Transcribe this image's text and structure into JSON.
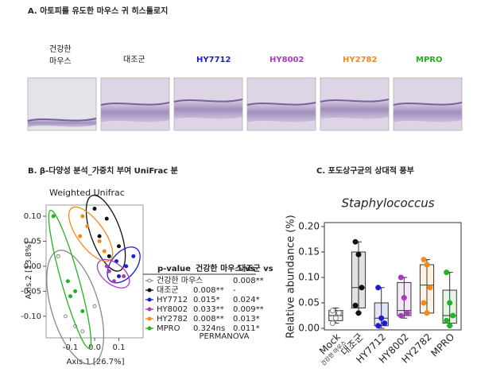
{
  "panel_a": {
    "title": "A. 아토피를 유도한 마우스 귀 히스톨로지",
    "groups": [
      "건강한\n마우스",
      "대조군",
      "HY7712",
      "HY8002",
      "HY2782",
      "MPRO"
    ],
    "group_colors": [
      "#111111",
      "#111111",
      "#1c1cd8",
      "#a83ac0",
      "#f0891c",
      "#22b322"
    ]
  },
  "panel_b_title": "B. β-다양성 분석_가중치 부여 UniFrac 분",
  "panel_c_title": "C. 포도상구균의 상대적 풍부",
  "chart_data": [
    {
      "type": "scatter",
      "title": "Weighted Unifrac",
      "x_label": "Axis.1 [26.7%]",
      "y_label": "Axis.2 [13.8%]",
      "xlim": [
        -0.2,
        0.2
      ],
      "ylim": [
        -0.14,
        0.12
      ],
      "xticks": [
        {
          "value": -0.1,
          "label": "-0.1"
        },
        {
          "value": 0,
          "label": "0.0"
        },
        0.1
      ],
      "yticks": [
        {
          "value": -0.1,
          "label": "-0.10"
        },
        {
          "value": -0.05,
          "label": "-0.05"
        },
        {
          "value": 0,
          "label": "0.00"
        },
        {
          "value": 0.05,
          "label": "0.05"
        },
        {
          "value": 0.1,
          "label": "0.10"
        }
      ],
      "series": [
        {
          "name": "건강한 마우스",
          "color": "#888888",
          "filled": false,
          "x": [
            -0.15,
            -0.12,
            -0.08,
            -0.05,
            0.0
          ],
          "values": [
            0.02,
            -0.1,
            -0.12,
            -0.13,
            -0.08
          ]
        },
        {
          "name": "대조군",
          "color": "#111111",
          "filled": true,
          "x": [
            0.0,
            0.05,
            0.02,
            0.06,
            0.1
          ],
          "values": [
            0.115,
            0.095,
            0.06,
            0.02,
            0.04
          ]
        },
        {
          "name": "HY7712",
          "color": "#1c1cd8",
          "filled": true,
          "x": [
            0.09,
            0.13,
            0.1,
            0.16
          ],
          "values": [
            0.01,
            0.0,
            -0.02,
            0.02
          ]
        },
        {
          "name": "HY8002",
          "color": "#a83ac0",
          "filled": true,
          "x": [
            0.06,
            0.08,
            0.12,
            0.05
          ],
          "values": [
            -0.01,
            -0.03,
            -0.02,
            0.0
          ]
        },
        {
          "name": "HY2782",
          "color": "#f0891c",
          "filled": true,
          "x": [
            -0.05,
            -0.03,
            0.02,
            -0.06,
            0.04
          ],
          "values": [
            0.1,
            0.08,
            0.05,
            0.06,
            0.03
          ]
        },
        {
          "name": "MPRO",
          "color": "#22b322",
          "filled": true,
          "x": [
            -0.17,
            -0.1,
            -0.08,
            -0.05,
            -0.11
          ],
          "values": [
            0.1,
            -0.06,
            -0.05,
            -0.09,
            -0.03
          ]
        }
      ]
    },
    {
      "type": "box",
      "title": "Staphylococcus",
      "y_label": "Relative abundance (%)",
      "categories": [
        "Mock",
        "대조군",
        "HY7712",
        "HY8002",
        "HY2782",
        "MPRO"
      ],
      "first_category_note": "건강한 마우스",
      "ylim": [
        0,
        0.2
      ],
      "yticks": [
        {
          "value": 0,
          "label": "0.00"
        },
        {
          "value": 0.05,
          "label": "0.05"
        },
        {
          "value": 0.1,
          "label": "0.10"
        },
        {
          "value": 0.15,
          "label": "0.15"
        },
        {
          "value": 0.2,
          "label": "0.20"
        }
      ],
      "series": [
        {
          "color": "#888888",
          "min": 0.01,
          "q1": 0.015,
          "median": 0.025,
          "q3": 0.035,
          "max": 0.04,
          "points": [
            0.01,
            0.02,
            0.03,
            0.035
          ]
        },
        {
          "color": "#111111",
          "min": 0.03,
          "q1": 0.04,
          "median": 0.08,
          "q3": 0.15,
          "max": 0.17,
          "points": [
            0.17,
            0.145,
            0.08,
            0.045,
            0.03
          ]
        },
        {
          "color": "#1c1cd8",
          "min": 0.0,
          "q1": 0.005,
          "median": 0.02,
          "q3": 0.05,
          "max": 0.08,
          "points": [
            0.08,
            0.02,
            0.01,
            0.005
          ]
        },
        {
          "color": "#a83ac0",
          "min": 0.02,
          "q1": 0.025,
          "median": 0.035,
          "q3": 0.09,
          "max": 0.1,
          "points": [
            0.1,
            0.06,
            0.03,
            0.025
          ]
        },
        {
          "color": "#f0891c",
          "min": 0.03,
          "q1": 0.03,
          "median": 0.085,
          "q3": 0.125,
          "max": 0.135,
          "points": [
            0.135,
            0.125,
            0.08,
            0.05,
            0.03
          ]
        },
        {
          "color": "#22b322",
          "min": 0.005,
          "q1": 0.01,
          "median": 0.025,
          "q3": 0.075,
          "max": 0.11,
          "points": [
            0.11,
            0.05,
            0.025,
            0.015,
            0.005
          ]
        }
      ]
    }
  ],
  "table": {
    "header": [
      "p-value",
      "건강한 마우스 vs",
      "대조군 vs"
    ],
    "rows": [
      [
        "-",
        "0.008**"
      ],
      [
        "0.008**",
        "-"
      ],
      [
        "0.015*",
        "0.024*"
      ],
      [
        "0.033**",
        "0.009**"
      ],
      [
        "0.008**",
        "0.013*"
      ],
      [
        "0.324ns",
        "0.011*"
      ]
    ],
    "footer": "PERMANOVA"
  }
}
